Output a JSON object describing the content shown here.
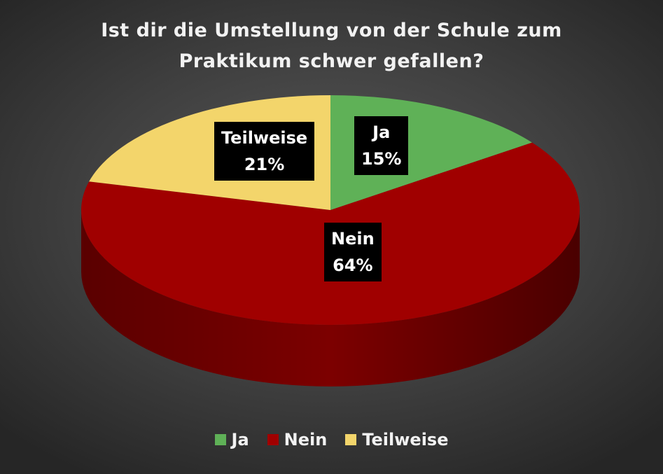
{
  "chart_data": {
    "type": "pie",
    "title_lines": [
      "Ist dir die Umstellung von der Schule zum",
      "Praktikum schwer gefallen?"
    ],
    "slices": [
      {
        "label": "Ja",
        "value": 15,
        "value_label": "15%",
        "color": "#5fb157"
      },
      {
        "label": "Nein",
        "value": 64,
        "value_label": "64%",
        "color": "#a00000"
      },
      {
        "label": "Teilweise",
        "value": 21,
        "value_label": "21%",
        "color": "#f3d56b"
      }
    ],
    "legend_position": "bottom",
    "style": "3d"
  }
}
